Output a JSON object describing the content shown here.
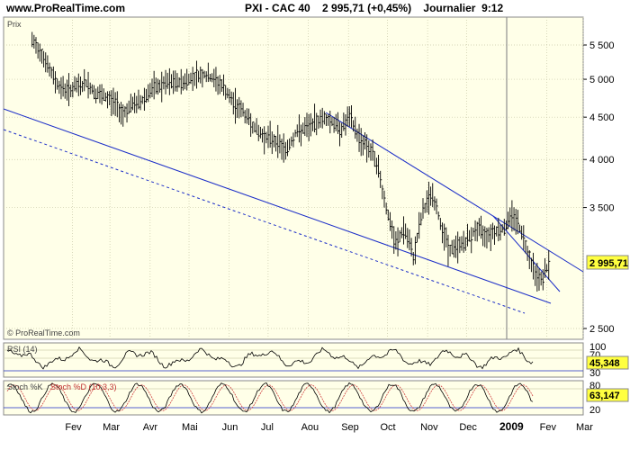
{
  "header": {
    "site": "www.ProRealTime.com",
    "ticker_line": "PXI - CAC 40    2 995,71 (+0,45%)    Journalier  9:12"
  },
  "main_panel": {
    "label": "Prix",
    "watermark": "© ProRealTime.com",
    "price_badge": "2 995,71"
  },
  "rsi_panel": {
    "label": "RSI (14)",
    "value_badge": "45,348",
    "tick_100": "100",
    "tick_70": "70",
    "tick_30": "30"
  },
  "stoch_panel": {
    "label": "Stoch %K",
    "label_d": "Stoch %D (10,3,3)",
    "value_badge": "63,147",
    "tick_80": "80",
    "tick_20": "20"
  },
  "colors": {
    "background": "#ffffe8",
    "grid": "#c8c8a8",
    "trend": "#1c2ec8",
    "bars": "#000000",
    "stoch_d": "#d04040",
    "badge_bg": "#ffff40"
  },
  "chart_data": {
    "type": "line",
    "title": "PXI - CAC 40",
    "series": [
      {
        "name": "Prix",
        "style": "ohlc bars (approx. closes)",
        "x": [
          "2008-01-01",
          "2008-01-08",
          "2008-01-15",
          "2008-01-22",
          "2008-01-29",
          "2008-02-05",
          "2008-02-12",
          "2008-02-19",
          "2008-02-26",
          "2008-03-04",
          "2008-03-11",
          "2008-03-18",
          "2008-03-25",
          "2008-04-01",
          "2008-04-08",
          "2008-04-15",
          "2008-04-22",
          "2008-04-29",
          "2008-05-06",
          "2008-05-13",
          "2008-05-20",
          "2008-05-27",
          "2008-06-03",
          "2008-06-10",
          "2008-06-17",
          "2008-06-24",
          "2008-07-01",
          "2008-07-08",
          "2008-07-15",
          "2008-07-22",
          "2008-07-29",
          "2008-08-05",
          "2008-08-12",
          "2008-08-19",
          "2008-08-26",
          "2008-09-02",
          "2008-09-09",
          "2008-09-16",
          "2008-09-23",
          "2008-09-30",
          "2008-10-07",
          "2008-10-14",
          "2008-10-21",
          "2008-10-28",
          "2008-11-04",
          "2008-11-11",
          "2008-11-18",
          "2008-11-25",
          "2008-12-02",
          "2008-12-09",
          "2008-12-16",
          "2008-12-23",
          "2008-12-30",
          "2009-01-06",
          "2009-01-13",
          "2009-01-20",
          "2009-01-27",
          "2009-02-03"
        ],
        "values": [
          5550,
          5400,
          5100,
          4900,
          4850,
          4900,
          4950,
          4800,
          4750,
          4700,
          4550,
          4650,
          4700,
          4850,
          4900,
          4950,
          4950,
          4980,
          5050,
          5060,
          5000,
          4900,
          4700,
          4600,
          4450,
          4300,
          4250,
          4200,
          4100,
          4300,
          4350,
          4420,
          4500,
          4450,
          4350,
          4500,
          4250,
          4150,
          3950,
          3500,
          3150,
          3300,
          3050,
          3450,
          3650,
          3350,
          3100,
          3150,
          3200,
          3300,
          3250,
          3280,
          3300,
          3450,
          3250,
          3000,
          2850,
          2995.71
        ]
      }
    ],
    "x_tick_labels": [
      "Fev",
      "Mar",
      "Avr",
      "Mai",
      "Jun",
      "Jul",
      "Aou",
      "Sep",
      "Oct",
      "Nov",
      "Dec",
      "2009",
      "Fev",
      "Mar"
    ],
    "y_tick_labels": [
      "5 500",
      "5 000",
      "4 500",
      "4 000",
      "3 500",
      "2 500"
    ],
    "ylim": [
      2450,
      5800
    ],
    "y_scale": "log",
    "grid": true,
    "last_value": 2995.71,
    "change_percent": 0.45,
    "indicators": [
      {
        "name": "RSI (14)",
        "last": 45.348,
        "levels": [
          100,
          70,
          30
        ]
      },
      {
        "name": "Stoch %K / Stoch %D (10,3,3)",
        "last": 63.147,
        "levels": [
          80,
          20
        ]
      }
    ]
  }
}
